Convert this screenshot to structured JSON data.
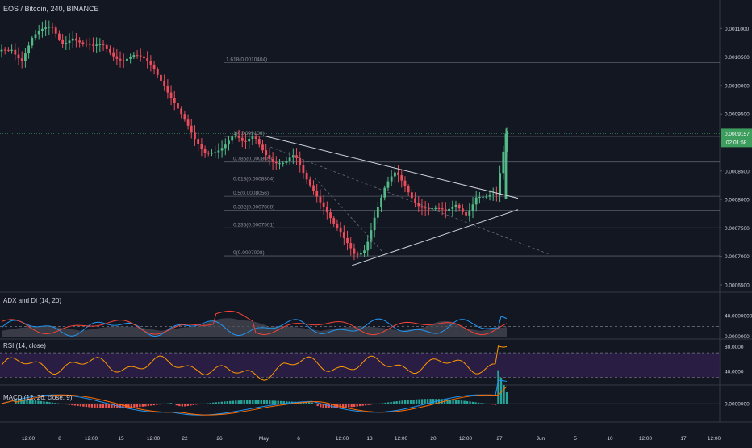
{
  "colors": {
    "background": "#131722",
    "text": "#d1d4dc",
    "candle_up": "#53b987",
    "candle_down": "#eb4d5c",
    "adx": "#7f7f7f",
    "di_plus": "#2196f3",
    "di_minus": "#f44336",
    "rsi": "#ff9800",
    "rsi_band": "#2e1f4a",
    "macd_line": "#2196f3",
    "signal_line": "#ff6d00",
    "hist_up": "#26a69a",
    "hist_down": "#ef5350",
    "price_tag": "#3d9d5c"
  },
  "header": {
    "title": "EOS / Bitcoin, 240, BINANCE"
  },
  "price_axis": {
    "ticks": [
      "0.0011000",
      "0.0010500",
      "0.0010000",
      "0.0009500",
      "0.0008500",
      "0.0008000",
      "0.0007500",
      "0.0007000",
      "0.0006500"
    ],
    "current_price": "0.0009157",
    "countdown": "02:01:58"
  },
  "fib_levels": [
    {
      "label": "1.618(0.0010404)"
    },
    {
      "label": "1(0.0009106)"
    },
    {
      "label": "0.786(0.0008657)"
    },
    {
      "label": "0.618(0.0008304)"
    },
    {
      "label": "0.5(0.0008056)"
    },
    {
      "label": "0.382(0.0007808)"
    },
    {
      "label": "0.236(0.0007501)"
    },
    {
      "label": "0(0.0007008)"
    }
  ],
  "indicators": {
    "adx": {
      "label": "ADX and DI (14, 20)",
      "axis_ticks": [
        "40.0000000",
        "0.0000000"
      ]
    },
    "rsi": {
      "label": "RSI (14, close)",
      "axis_ticks": [
        "80.0000",
        "40.0000"
      ]
    },
    "macd": {
      "label": "MACD (12, 26, close, 9)",
      "axis_ticks": [
        "0.0000000"
      ]
    }
  },
  "time_axis": {
    "ticks": [
      "12:00",
      "8",
      "12:00",
      "15",
      "12:00",
      "22",
      "26",
      "May",
      "6",
      "12:00",
      "13",
      "12:00",
      "20",
      "12:00",
      "27",
      "Jun",
      "5",
      "10",
      "12:00",
      "17",
      "12:00"
    ]
  },
  "chart_data": {
    "type": "candlestick",
    "title": "EOS / Bitcoin, 240, BINANCE",
    "ylim": [
      0.00064,
      0.00115
    ],
    "current_price": 0.0009157,
    "x_labels": [
      "12:00",
      "8",
      "12:00",
      "15",
      "12:00",
      "22",
      "26",
      "May",
      "6",
      "12:00",
      "13",
      "12:00",
      "20",
      "12:00",
      "27",
      "Jun",
      "5",
      "10",
      "12:00",
      "17",
      "12:00"
    ],
    "price_path": [
      0.00106,
      0.00107,
      0.00105,
      0.00108,
      0.00109,
      0.0011,
      0.00108,
      0.00109,
      0.00107,
      0.00106,
      0.00107,
      0.00106,
      0.00105,
      0.00105,
      0.00104,
      0.00103,
      0.00101,
      0.00098,
      0.00094,
      0.0009,
      0.00088,
      0.00089,
      0.0009,
      0.00091,
      0.00089,
      0.00091,
      0.00089,
      0.00087,
      0.00086,
      0.00087,
      0.00084,
      0.00082,
      0.00079,
      0.00075,
      0.00072,
      0.0007,
      0.00072,
      0.00078,
      0.00082,
      0.00084,
      0.00082,
      0.0008,
      0.00079,
      0.00078,
      0.00077,
      0.00079,
      0.00078,
      0.00081,
      0.0008,
      0.0008,
      0.00092
    ],
    "fibonacci": [
      {
        "ratio": 1.618,
        "price": 0.0010404
      },
      {
        "ratio": 1,
        "price": 0.0009106
      },
      {
        "ratio": 0.786,
        "price": 0.0008657
      },
      {
        "ratio": 0.618,
        "price": 0.0008304
      },
      {
        "ratio": 0.5,
        "price": 0.0008056
      },
      {
        "ratio": 0.382,
        "price": 0.0007808
      },
      {
        "ratio": 0.236,
        "price": 0.0007501
      },
      {
        "ratio": 0,
        "price": 0.0007008
      }
    ],
    "indicators": {
      "adx": {
        "ylim": [
          0,
          80
        ],
        "reference_level": 20
      },
      "rsi": {
        "ylim": [
          20,
          90
        ],
        "upper_band": 70,
        "lower_band": 30
      },
      "macd": {
        "zero_line": 0
      }
    }
  }
}
